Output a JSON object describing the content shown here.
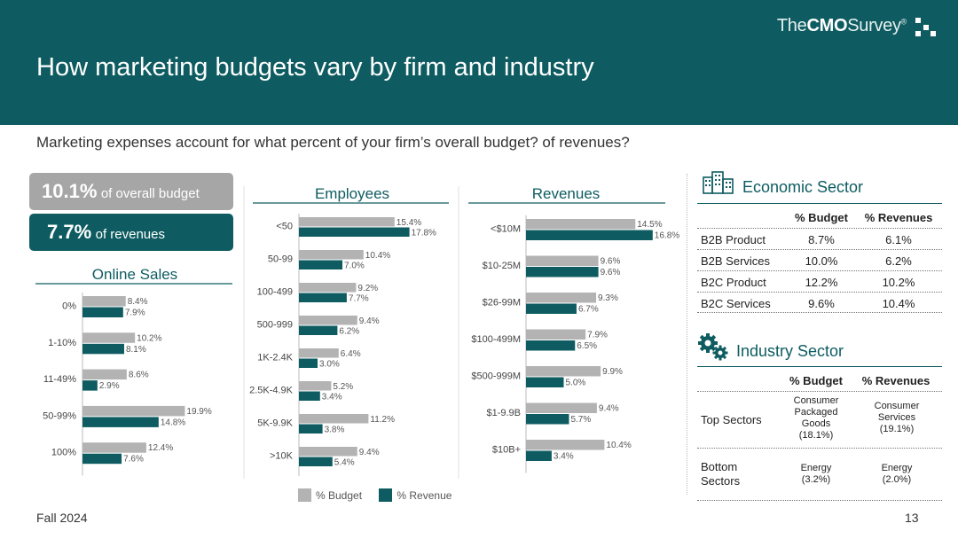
{
  "header": {
    "title": "How marketing budgets vary by firm and industry",
    "brand_the": "The",
    "brand_cmo": "CMO",
    "brand_survey": "Survey",
    "brand_mark": "®"
  },
  "subtitle": "Marketing expenses account for what percent of your firm’s overall budget? of revenues?",
  "kpis": {
    "budget_value": "10.1%",
    "budget_label": "of overall budget",
    "revenue_value": "7.7%",
    "revenue_label": "of revenues"
  },
  "legend": {
    "budget": "% Budget",
    "revenue": "% Revenue"
  },
  "footer": {
    "left": "Fall 2024",
    "page": "13"
  },
  "colors": {
    "teal": "#0e5c61",
    "gray": "#b3b3b3"
  },
  "chart_data": [
    {
      "type": "bar",
      "orientation": "horizontal",
      "title": "Online Sales",
      "categories": [
        "0%",
        "1-10%",
        "11-49%",
        "50-99%",
        "100%"
      ],
      "series": [
        {
          "name": "% Budget",
          "values": [
            8.4,
            10.2,
            8.6,
            19.9,
            12.4
          ],
          "labels": [
            "8.4%",
            "10.2%",
            "8.6%",
            "19.9%",
            "12.4%"
          ]
        },
        {
          "name": "% Revenue",
          "values": [
            7.9,
            8.1,
            2.9,
            14.8,
            7.6
          ],
          "labels": [
            "7.9%",
            "8.1%",
            "2.9%",
            "14.8%",
            "7.6%"
          ]
        }
      ],
      "xlim": [
        0,
        20
      ]
    },
    {
      "type": "bar",
      "orientation": "horizontal",
      "title": "Employees",
      "categories": [
        "<50",
        "50-99",
        "100-499",
        "500-999",
        "1K-2.4K",
        "2.5K-4.9K",
        "5K-9.9K",
        ">10K"
      ],
      "series": [
        {
          "name": "% Budget",
          "values": [
            15.4,
            10.4,
            9.2,
            9.4,
            6.4,
            5.2,
            11.2,
            9.4
          ],
          "labels": [
            "15.4%",
            "10.4%",
            "9.2%",
            "9.4%",
            "6.4%",
            "5.2%",
            "11.2%",
            "9.4%"
          ]
        },
        {
          "name": "% Revenue",
          "values": [
            17.8,
            7.0,
            7.7,
            6.2,
            3.0,
            3.4,
            3.8,
            5.4
          ],
          "labels": [
            "17.8%",
            "7.0%",
            "7.7%",
            "6.2%",
            "3.0%",
            "3.4%",
            "3.8%",
            "5.4%"
          ]
        }
      ],
      "xlim": [
        0,
        18
      ]
    },
    {
      "type": "bar",
      "orientation": "horizontal",
      "title": "Revenues",
      "categories": [
        "<$10M",
        "$10-25M",
        "$26-99M",
        "$100-499M",
        "$500-999M",
        "$1-9.9B",
        "$10B+"
      ],
      "series": [
        {
          "name": "% Budget",
          "values": [
            14.5,
            9.6,
            9.3,
            7.9,
            9.9,
            9.4,
            10.4
          ],
          "labels": [
            "14.5%",
            "9.6%",
            "9.3%",
            "7.9%",
            "9.9%",
            "9.4%",
            "10.4%"
          ]
        },
        {
          "name": "% Revenue",
          "values": [
            16.8,
            9.6,
            6.7,
            6.5,
            5.0,
            5.7,
            3.4
          ],
          "labels": [
            "16.8%",
            "9.6%",
            "6.7%",
            "6.5%",
            "5.0%",
            "5.7%",
            "3.4%"
          ]
        }
      ],
      "xlim": [
        0,
        17
      ]
    }
  ],
  "economic_sector": {
    "title": "Economic Sector",
    "col_budget": "% Budget",
    "col_revenues": "% Revenues",
    "rows": [
      {
        "label": "B2B Product",
        "budget": "8.7%",
        "revenues": "6.1%"
      },
      {
        "label": "B2B Services",
        "budget": "10.0%",
        "revenues": "6.2%"
      },
      {
        "label": "B2C Product",
        "budget": "12.2%",
        "revenues": "10.2%"
      },
      {
        "label": "B2C Services",
        "budget": "9.6%",
        "revenues": "10.4%"
      }
    ]
  },
  "industry_sector": {
    "title": "Industry Sector",
    "col_budget": "% Budget",
    "col_revenues": "% Revenues",
    "top_label": "Top Sectors",
    "top_budget_l1": "Consumer",
    "top_budget_l2": "Packaged",
    "top_budget_l3": "Goods",
    "top_budget_l4": "(18.1%)",
    "top_rev_l1": "Consumer",
    "top_rev_l2": "Services",
    "top_rev_l3": "(19.1%)",
    "bottom_label_l1": "Bottom",
    "bottom_label_l2": "Sectors",
    "bottom_budget_l1": "Energy",
    "bottom_budget_l2": "(3.2%)",
    "bottom_rev_l1": "Energy",
    "bottom_rev_l2": "(2.0%)"
  }
}
